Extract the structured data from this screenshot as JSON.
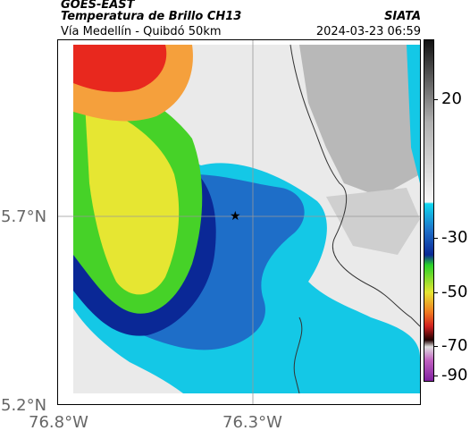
{
  "header": {
    "satellite": "GOES-EAST",
    "product": "Temperatura de Brillo CH13",
    "region": "Vía Medellín - Quibdó 50km",
    "agency": "SIATA",
    "datetime": "2024-03-23 06:59"
  },
  "axes": {
    "lat_labels": [
      "5.7°N",
      "5.2°N"
    ],
    "lon_labels": [
      "76.8°W",
      "76.3°W"
    ]
  },
  "colorbar": {
    "tick_labels": [
      "20",
      "-30",
      "-50",
      "-70",
      "-90"
    ]
  },
  "colors": {
    "cold_red": "#e8281e",
    "orange": "#f5a03c",
    "yellow": "#e6e632",
    "green": "#46d228",
    "dark_blue": "#0a2896",
    "blue": "#1e6ec8",
    "cyan": "#14c8e6",
    "gray": "#b4b4b4",
    "light_gray": "#e6e6e6"
  }
}
